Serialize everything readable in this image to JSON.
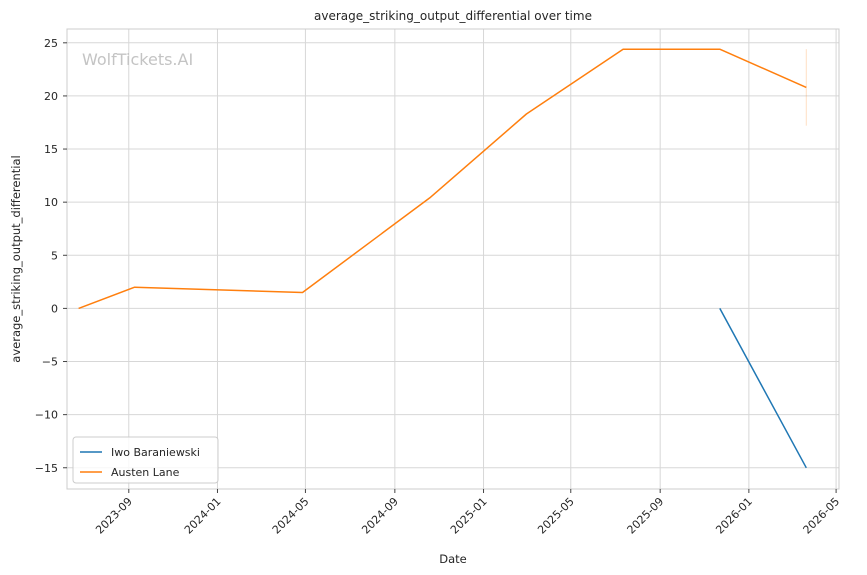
{
  "chart_data": {
    "type": "line",
    "title": "average_striking_output_differential over time",
    "xlabel": "Date",
    "ylabel": "average_striking_output_differential",
    "watermark": "WolfTickets.AI",
    "x_range": [
      "2023-06-08",
      "2026-05-05"
    ],
    "ylim": [
      -17,
      26.3
    ],
    "grid": true,
    "legend_position": "lower-left",
    "x_ticks": [
      "2023-09",
      "2024-01",
      "2024-05",
      "2024-09",
      "2025-01",
      "2025-05",
      "2025-09",
      "2026-01",
      "2026-05"
    ],
    "y_ticks": [
      25,
      20,
      15,
      10,
      5,
      0,
      -5,
      -10,
      -15
    ],
    "y_tick_labels": [
      "25",
      "20",
      "15",
      "10",
      "5",
      "0",
      "−5",
      "−10",
      "−15"
    ],
    "series": [
      {
        "name": "Iwo Baraniewski",
        "color": "#1f77b4",
        "points": [
          {
            "x": "2025-11-22",
            "y": 0
          },
          {
            "x": "2026-03-21",
            "y": -15
          }
        ]
      },
      {
        "name": "Austen Lane",
        "color": "#ff7f0e",
        "points": [
          {
            "x": "2023-06-24",
            "y": 0
          },
          {
            "x": "2023-09-09",
            "y": 2
          },
          {
            "x": "2024-04-27",
            "y": 1.5
          },
          {
            "x": "2024-10-19",
            "y": 10.4
          },
          {
            "x": "2025-03-01",
            "y": 18.3
          },
          {
            "x": "2025-07-12",
            "y": 24.4
          },
          {
            "x": "2025-11-22",
            "y": 24.4
          },
          {
            "x": "2026-03-21",
            "y": 20.8
          }
        ],
        "error_band": {
          "x": "2026-03-21",
          "low": 17.2,
          "high": 24.4
        }
      }
    ]
  }
}
